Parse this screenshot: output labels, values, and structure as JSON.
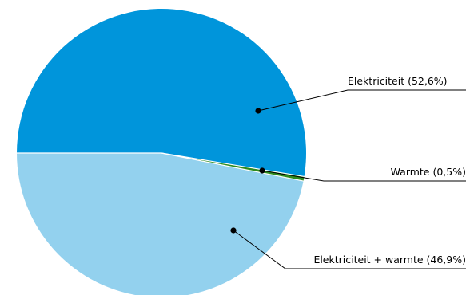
{
  "chart_data": {
    "type": "pie",
    "slices": [
      {
        "label": "Elektriciteit (52,6%)",
        "value": 52.6,
        "color": "#0095db"
      },
      {
        "label": "Warmte (0,5%)",
        "value": 0.5,
        "color": "#2e8b1e"
      },
      {
        "label": "Elektriciteit + warmte (46,9%)",
        "value": 46.9,
        "color": "#93d1ee"
      }
    ],
    "title": "",
    "legend": "none",
    "separator_color": "#ffffff",
    "label_line_color": "#000000"
  }
}
